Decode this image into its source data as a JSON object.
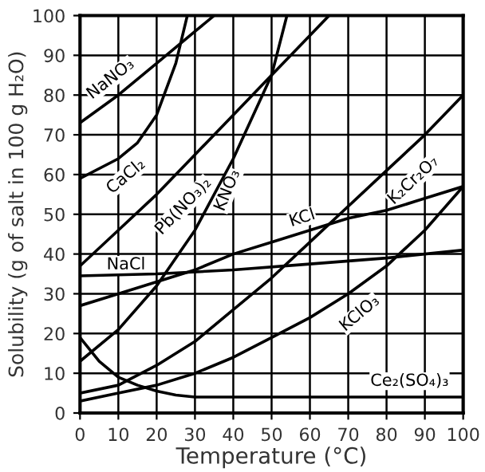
{
  "chart_data": {
    "type": "line",
    "xlabel": "Temperature (°C)",
    "ylabel": "Solubility (g of salt in 100 g H₂O)",
    "xlim": [
      0,
      100
    ],
    "ylim": [
      0,
      100
    ],
    "xticks": [
      0,
      10,
      20,
      30,
      40,
      50,
      60,
      70,
      80,
      90,
      100
    ],
    "yticks": [
      0,
      10,
      20,
      30,
      40,
      50,
      60,
      70,
      80,
      90,
      100
    ],
    "grid": true,
    "legend": false,
    "marker": "none",
    "line_style": "solid",
    "series": [
      {
        "name": "NaNO₃",
        "color": "#000000",
        "x": [
          0,
          10,
          20,
          30,
          35
        ],
        "values": [
          73,
          80,
          88,
          96,
          100
        ]
      },
      {
        "name": "CaCl₂",
        "color": "#000000",
        "x": [
          0,
          10,
          15,
          20,
          25,
          28
        ],
        "values": [
          59,
          64,
          68,
          75,
          88,
          100
        ]
      },
      {
        "name": "Pb(NO₃)₂",
        "color": "#000000",
        "x": [
          0,
          10,
          20,
          30,
          40,
          50,
          60,
          65
        ],
        "values": [
          37,
          46,
          55,
          65,
          75,
          85,
          95,
          100
        ]
      },
      {
        "name": "KNO₃",
        "color": "#000000",
        "x": [
          0,
          10,
          20,
          30,
          40,
          50,
          54
        ],
        "values": [
          13,
          21,
          32,
          46,
          64,
          85,
          100
        ]
      },
      {
        "name": "K₂Cr₂O₇",
        "color": "#000000",
        "x": [
          0,
          10,
          20,
          30,
          40,
          50,
          60,
          70,
          80,
          90,
          100
        ],
        "values": [
          5,
          7,
          12,
          18,
          26,
          34,
          43,
          52,
          61,
          70,
          80
        ]
      },
      {
        "name": "KCl",
        "color": "#000000",
        "x": [
          0,
          10,
          20,
          30,
          40,
          50,
          60,
          70,
          80,
          90,
          100
        ],
        "values": [
          27,
          30,
          33,
          36,
          40,
          43,
          46,
          49,
          51,
          54,
          57
        ]
      },
      {
        "name": "NaCl",
        "color": "#000000",
        "x": [
          0,
          20,
          40,
          60,
          80,
          100
        ],
        "values": [
          34.5,
          35,
          36,
          37.5,
          39,
          41
        ]
      },
      {
        "name": "KClO₃",
        "color": "#000000",
        "x": [
          0,
          10,
          20,
          30,
          40,
          50,
          60,
          70,
          80,
          90,
          100
        ],
        "values": [
          3,
          5,
          7,
          10,
          14,
          19,
          24,
          30,
          37,
          46,
          57
        ]
      },
      {
        "name": "Ce₂(SO₄)₃",
        "color": "#000000",
        "x": [
          0,
          5,
          10,
          15,
          20,
          25,
          30,
          40,
          60,
          80,
          100
        ],
        "values": [
          19,
          13,
          9,
          7,
          5.5,
          4.5,
          4,
          4,
          4,
          4,
          4
        ]
      }
    ]
  }
}
